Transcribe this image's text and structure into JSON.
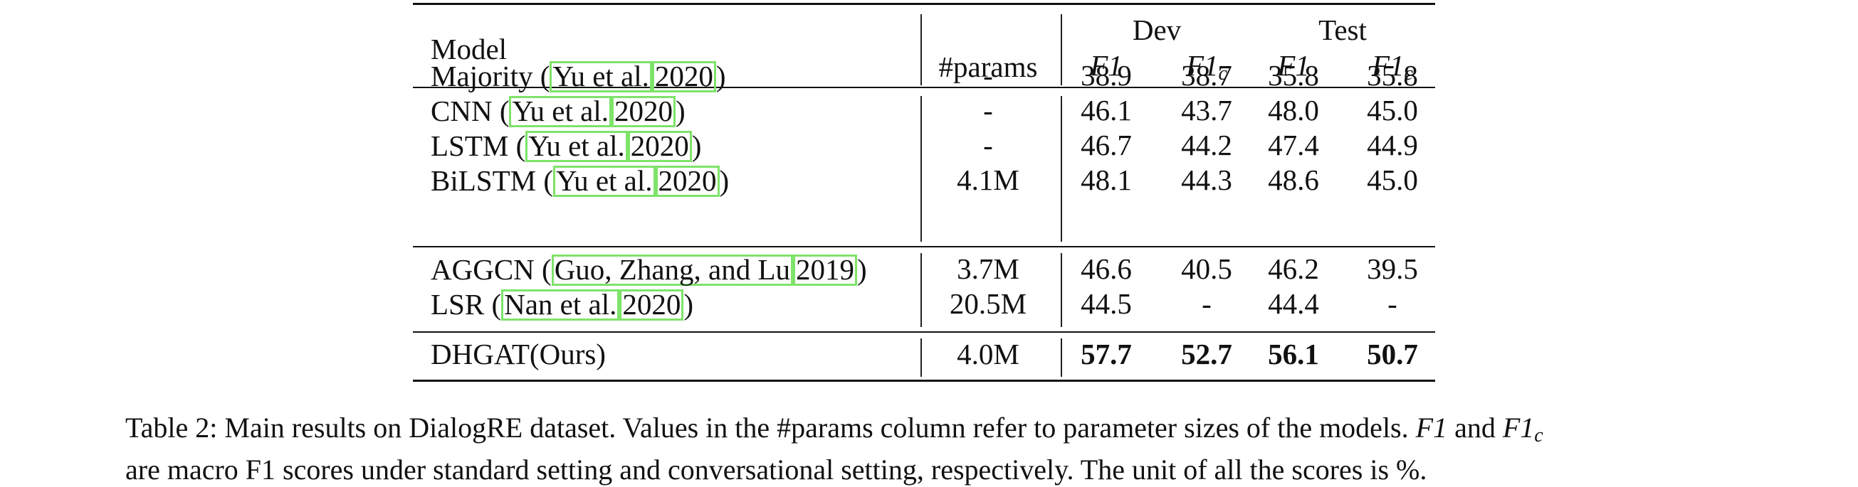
{
  "table": {
    "header": {
      "model": "Model",
      "params": "#params",
      "dev": "Dev",
      "test": "Test",
      "f1": "F1",
      "f1c_base": "F1",
      "f1c_sub": "c"
    },
    "groups": [
      [
        {
          "name": "Majority",
          "cite_a": "Yu et al.",
          "cite_b": "2020",
          "params": "-",
          "dev_f1": "38.9",
          "dev_f1c": "38.7",
          "test_f1": "35.8",
          "test_f1c": "35.8"
        },
        {
          "name": "CNN",
          "cite_a": "Yu et al.",
          "cite_b": "2020",
          "params": "-",
          "dev_f1": "46.1",
          "dev_f1c": "43.7",
          "test_f1": "48.0",
          "test_f1c": "45.0"
        },
        {
          "name": "LSTM",
          "cite_a": "Yu et al.",
          "cite_b": "2020",
          "params": "-",
          "dev_f1": "46.7",
          "dev_f1c": "44.2",
          "test_f1": "47.4",
          "test_f1c": "44.9"
        },
        {
          "name": "BiLSTM",
          "cite_a": "Yu et al.",
          "cite_b": "2020",
          "params": "4.1M",
          "dev_f1": "48.1",
          "dev_f1c": "44.3",
          "test_f1": "48.6",
          "test_f1c": "45.0"
        }
      ],
      [
        {
          "name": "AGGCN",
          "cite_a": "Guo, Zhang, and Lu",
          "cite_b": "2019",
          "params": "3.7M",
          "dev_f1": "46.6",
          "dev_f1c": "40.5",
          "test_f1": "46.2",
          "test_f1c": "39.5"
        },
        {
          "name": "LSR",
          "cite_a": "Nan et al.",
          "cite_b": "2020",
          "params": "20.5M",
          "dev_f1": "44.5",
          "dev_f1c": "-",
          "test_f1": "44.4",
          "test_f1c": "-"
        }
      ],
      [
        {
          "name": "DHGAT(Ours)",
          "cite_a": "",
          "cite_b": "",
          "params": "4.0M",
          "dev_f1": "57.7",
          "dev_f1c": "52.7",
          "test_f1": "56.1",
          "test_f1c": "50.7",
          "bold": true
        }
      ]
    ]
  },
  "caption": {
    "line1_a": "Table 2: Main results on DialogRE dataset. Values in the #params column refer to parameter sizes of the models. ",
    "line1_f1": "F1",
    "line1_mid": " and ",
    "line1_f1c": "F1",
    "line1_f1c_sub": "c",
    "line2": "are macro F1 scores under standard setting and conversational setting, respectively. The unit of all the scores is %."
  },
  "colors": {
    "citation_box": "#7ee36a",
    "text": "#111111"
  }
}
